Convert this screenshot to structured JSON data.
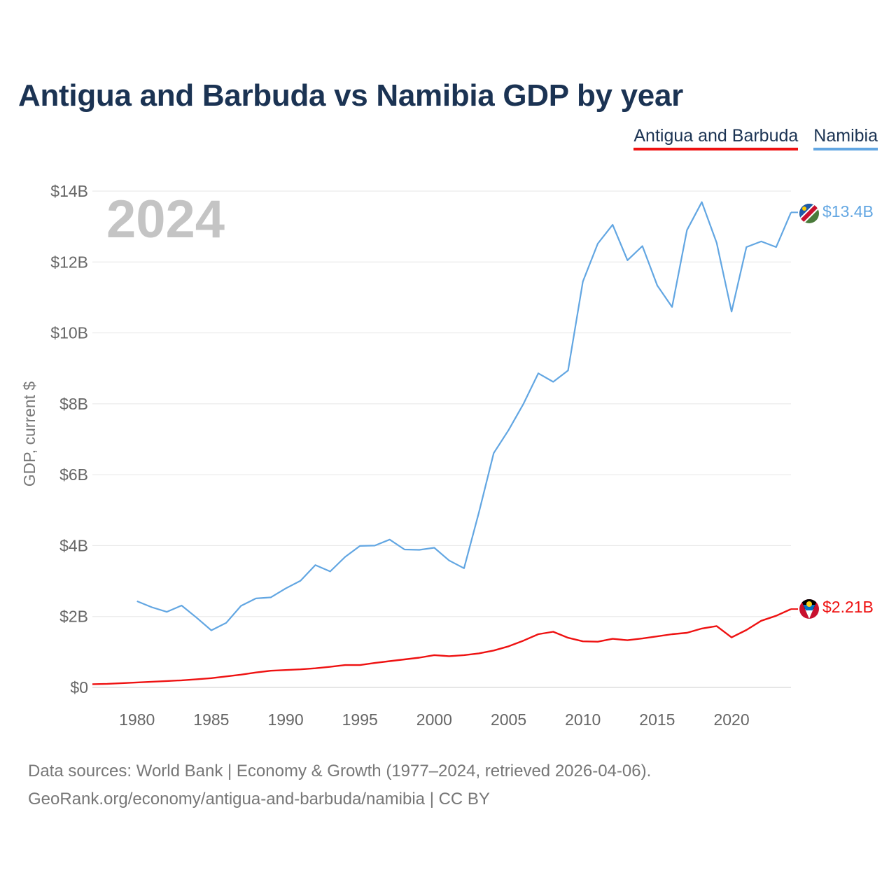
{
  "title": "Antigua and Barbuda vs Namibia GDP by year",
  "legend": {
    "antigua": "Antigua and Barbuda",
    "namibia": "Namibia"
  },
  "colors": {
    "antigua": "#ee1111",
    "namibia": "#62a6e2",
    "title": "#1b3353"
  },
  "icons": {
    "namibia_flag": "namibia-flag-icon",
    "antigua_flag": "antigua-flag-icon"
  },
  "source": {
    "line1": "Data sources: World Bank | Economy & Growth (1977–2024, retrieved 2026-04-06).",
    "line2": "GeoRank.org/economy/antigua-and-barbuda/namibia | CC BY"
  },
  "chart_data": {
    "type": "line",
    "title": "Antigua and Barbuda vs Namibia GDP by year",
    "ylabel": "GDP, current $",
    "xlabel": "",
    "year_label": "2024",
    "xlim": [
      1977,
      2024
    ],
    "ylim": [
      0,
      14
    ],
    "y_unit": "billions USD",
    "yticks": [
      0,
      2,
      4,
      6,
      8,
      10,
      12,
      14
    ],
    "ytick_labels": [
      "$0",
      "$2B",
      "$4B",
      "$6B",
      "$8B",
      "$10B",
      "$12B",
      "$14B"
    ],
    "xticks": [
      1980,
      1985,
      1990,
      1995,
      2000,
      2005,
      2010,
      2015,
      2020
    ],
    "xtick_labels": [
      "1980",
      "1985",
      "1990",
      "1995",
      "2000",
      "2005",
      "2010",
      "2015",
      "2020"
    ],
    "grid": true,
    "legend_position": "top-right",
    "series": [
      {
        "name": "Antigua and Barbuda",
        "key": "antigua",
        "end_label": "$2.21B",
        "x": [
          1977,
          1978,
          1979,
          1980,
          1981,
          1982,
          1983,
          1984,
          1985,
          1986,
          1987,
          1988,
          1989,
          1990,
          1991,
          1992,
          1993,
          1994,
          1995,
          1996,
          1997,
          1998,
          1999,
          2000,
          2001,
          2002,
          2003,
          2004,
          2005,
          2006,
          2007,
          2008,
          2009,
          2010,
          2011,
          2012,
          2013,
          2014,
          2015,
          2016,
          2017,
          2018,
          2019,
          2020,
          2021,
          2022,
          2023,
          2024
        ],
        "values": [
          0.09,
          0.1,
          0.12,
          0.14,
          0.16,
          0.18,
          0.2,
          0.23,
          0.26,
          0.31,
          0.36,
          0.42,
          0.47,
          0.49,
          0.51,
          0.54,
          0.58,
          0.63,
          0.63,
          0.69,
          0.74,
          0.79,
          0.84,
          0.91,
          0.88,
          0.91,
          0.96,
          1.04,
          1.16,
          1.32,
          1.5,
          1.57,
          1.4,
          1.3,
          1.29,
          1.37,
          1.33,
          1.38,
          1.44,
          1.5,
          1.54,
          1.66,
          1.73,
          1.41,
          1.62,
          1.88,
          2.02,
          2.21
        ]
      },
      {
        "name": "Namibia",
        "key": "namibia",
        "end_label": "$13.4B",
        "x": [
          1980,
          1981,
          1982,
          1983,
          1984,
          1985,
          1986,
          1987,
          1988,
          1989,
          1990,
          1991,
          1992,
          1993,
          1994,
          1995,
          1996,
          1997,
          1998,
          1999,
          2000,
          2001,
          2002,
          2003,
          2004,
          2005,
          2006,
          2007,
          2008,
          2009,
          2010,
          2011,
          2012,
          2013,
          2014,
          2015,
          2016,
          2017,
          2018,
          2019,
          2020,
          2021,
          2022,
          2023,
          2024
        ],
        "values": [
          2.43,
          2.26,
          2.13,
          2.31,
          1.97,
          1.61,
          1.82,
          2.3,
          2.51,
          2.54,
          2.79,
          3.01,
          3.45,
          3.27,
          3.68,
          3.99,
          4.0,
          4.17,
          3.89,
          3.88,
          3.94,
          3.58,
          3.36,
          4.93,
          6.61,
          7.26,
          8.0,
          8.86,
          8.62,
          8.94,
          11.45,
          12.52,
          13.05,
          12.05,
          12.45,
          11.34,
          10.73,
          12.9,
          13.69,
          12.54,
          10.6,
          12.42,
          12.58,
          12.42,
          13.4
        ]
      }
    ]
  }
}
